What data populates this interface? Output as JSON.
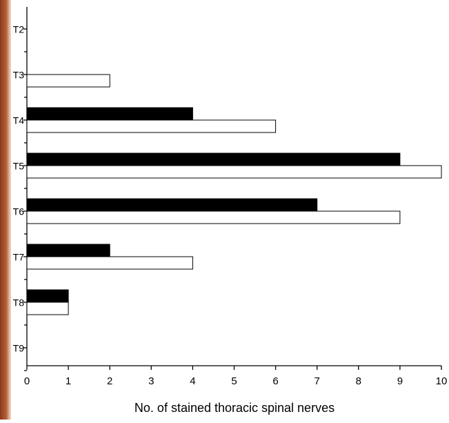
{
  "chart_data": {
    "type": "hbar",
    "x_label": "No. of stained thoracic spinal nerves",
    "categories": [
      "T2",
      "T3",
      "T4",
      "T5",
      "T6",
      "T7",
      "T8",
      "T9"
    ],
    "series": [
      {
        "color": "#000000",
        "values": [
          0,
          0,
          4,
          9,
          7,
          2,
          1,
          0
        ]
      },
      {
        "color": "#ffffff",
        "values": [
          0,
          2,
          6,
          10,
          9,
          4,
          1,
          0
        ]
      }
    ],
    "xlim": [
      0,
      10
    ],
    "xticks": [
      0,
      1,
      2,
      3,
      4,
      5,
      6,
      7,
      8,
      9,
      10
    ]
  }
}
